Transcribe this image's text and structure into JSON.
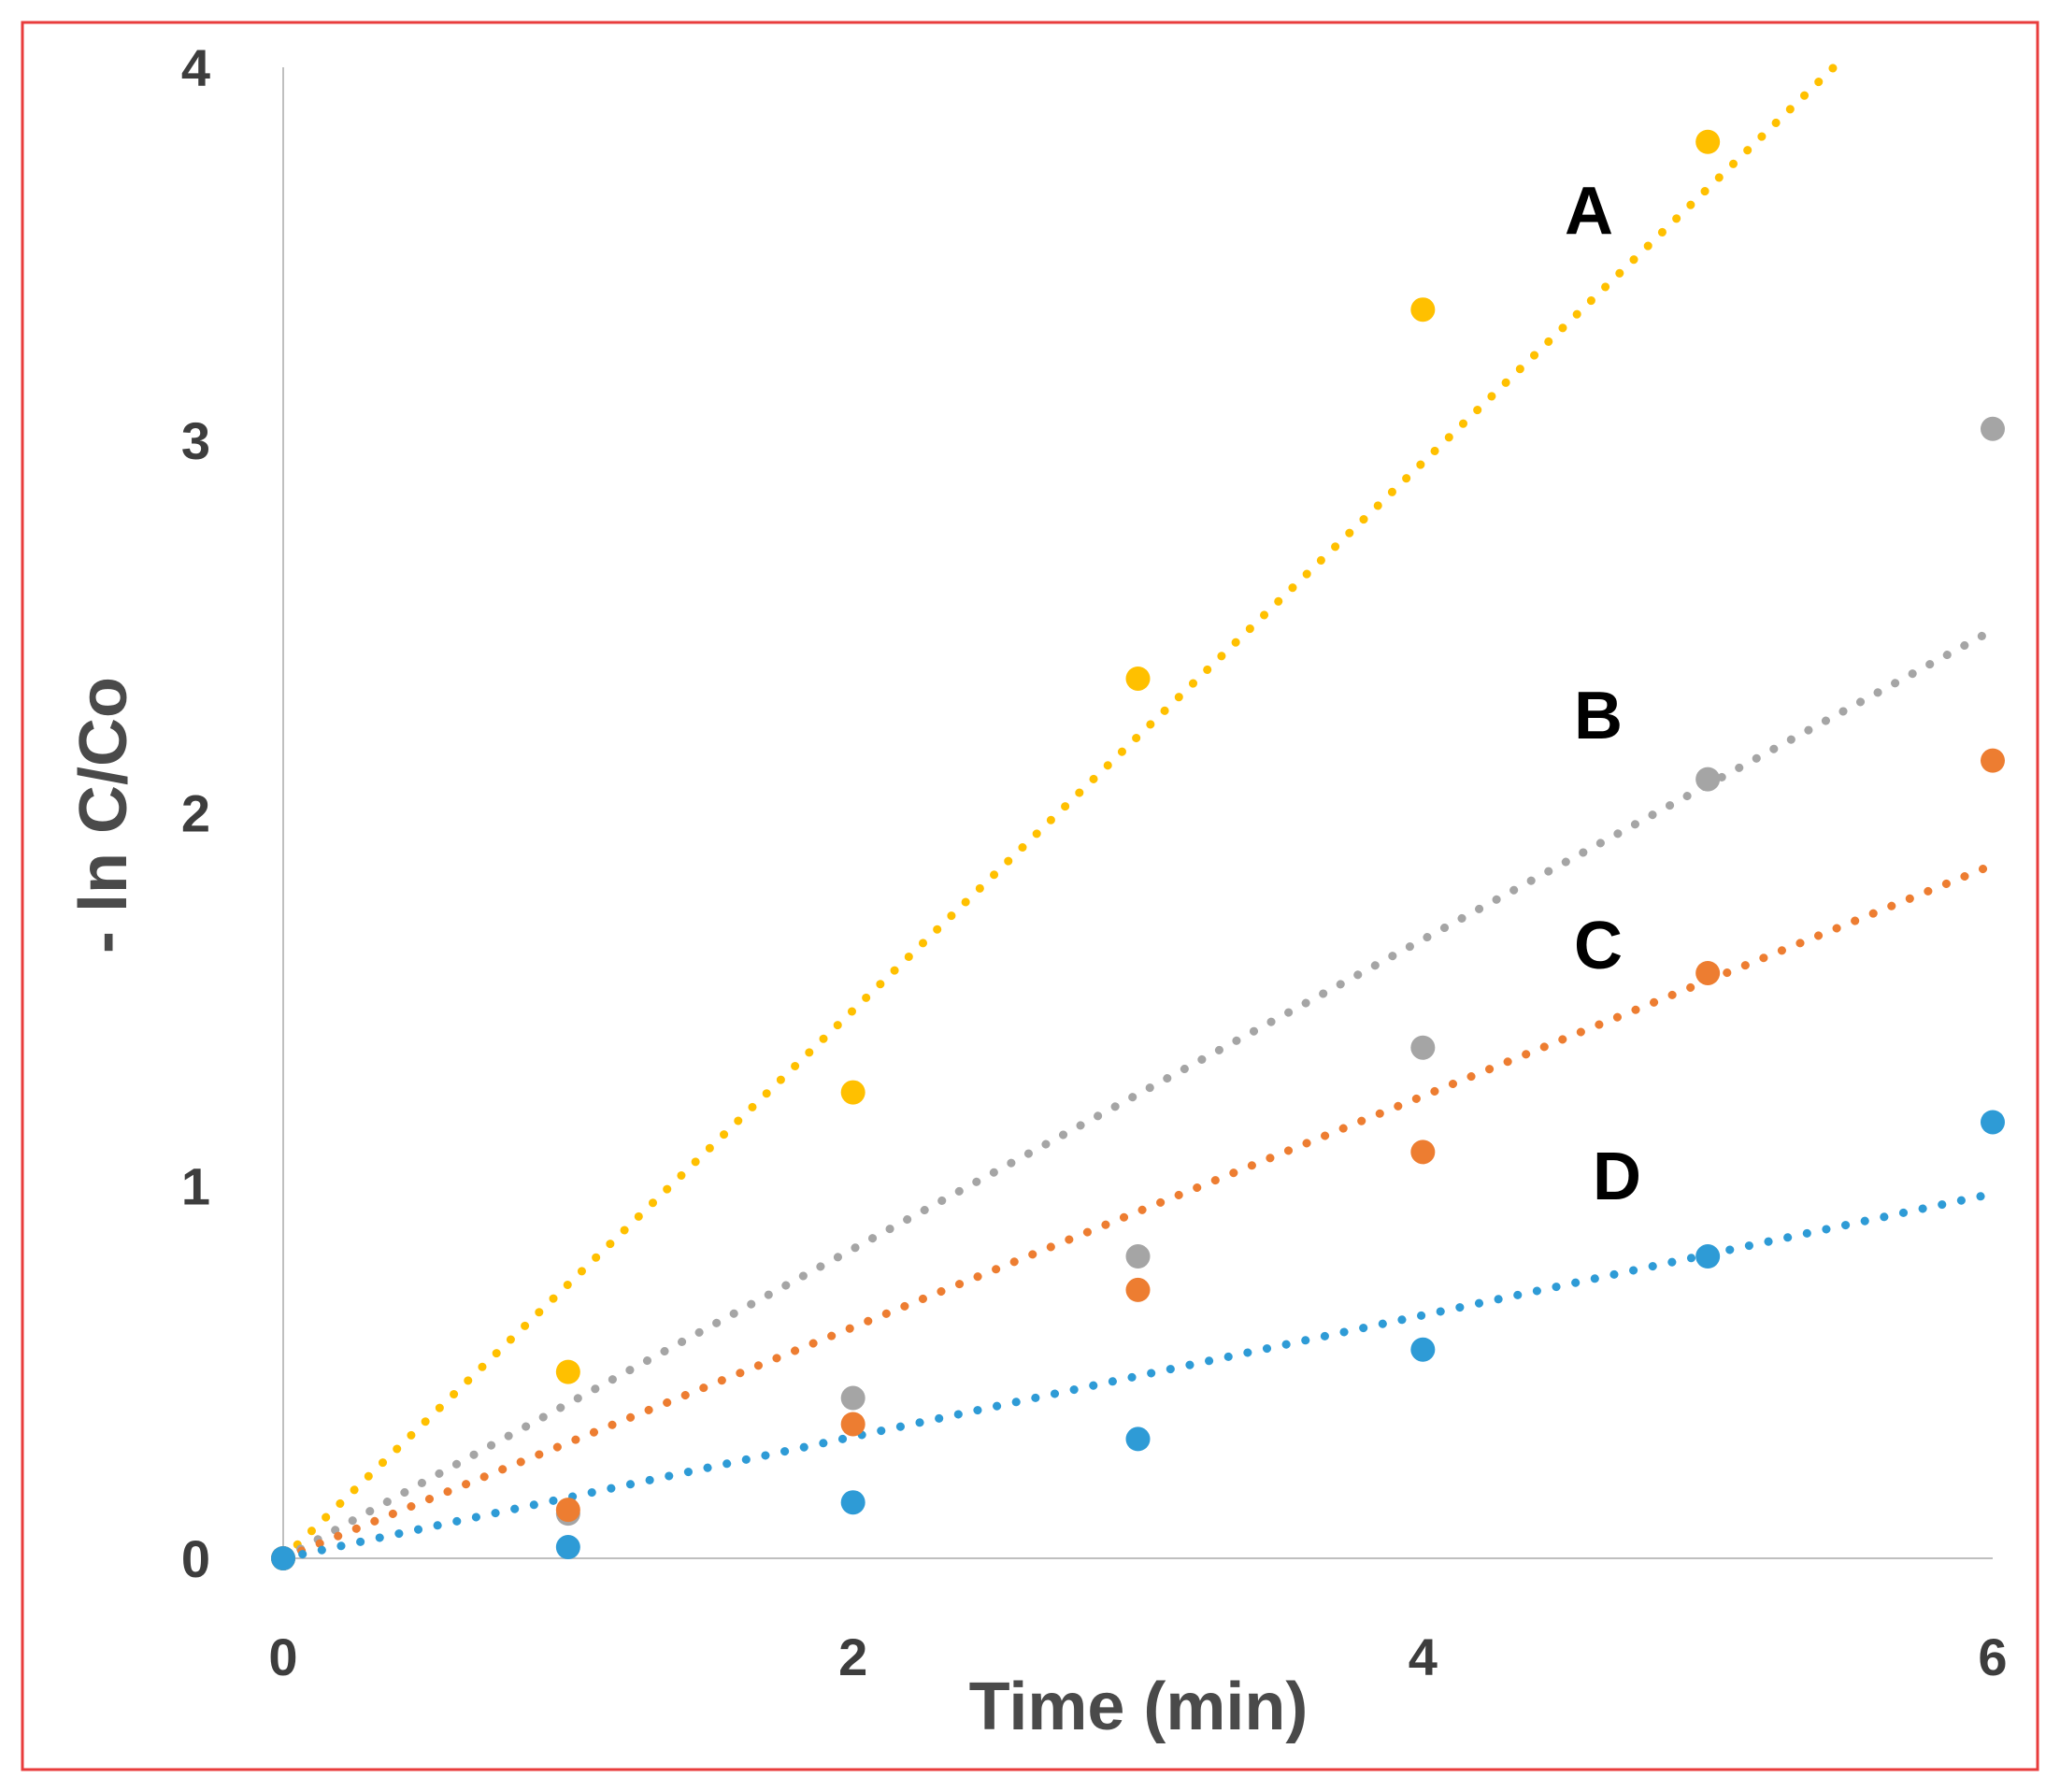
{
  "chart_data": {
    "type": "scatter",
    "title": "",
    "xlabel": "Time (min)",
    "ylabel": "- ln C/Co",
    "xlim": [
      0,
      6
    ],
    "ylim": [
      0,
      4
    ],
    "xticks": [
      "0",
      "2",
      "4",
      "6"
    ],
    "yticks": [
      "0",
      "1",
      "2",
      "3",
      "4"
    ],
    "grid": false,
    "frame_color": "#e83c3c",
    "axis_color": "#bfbfbf",
    "series": [
      {
        "name": "A",
        "color": "#ffc000",
        "x": [
          0,
          1,
          2,
          3,
          4,
          5,
          6
        ],
        "y": [
          0,
          0.5,
          1.25,
          2.36,
          3.35,
          3.8,
          null
        ],
        "trend": [
          0,
          0.735
        ]
      },
      {
        "name": "B",
        "color": "#a5a5a5",
        "x": [
          0,
          1,
          2,
          3,
          4,
          5,
          6
        ],
        "y": [
          0,
          0.12,
          0.43,
          0.81,
          1.37,
          2.09,
          3.03
        ],
        "trend": [
          0,
          0.415
        ]
      },
      {
        "name": "C",
        "color": "#ed7d31",
        "x": [
          0,
          1,
          2,
          3,
          4,
          5,
          6
        ],
        "y": [
          0,
          0.13,
          0.36,
          0.72,
          1.09,
          1.57,
          2.14
        ],
        "trend": [
          0,
          0.31
        ]
      },
      {
        "name": "D",
        "color": "#2e9bd6",
        "x": [
          0,
          1,
          2,
          3,
          4,
          5,
          6
        ],
        "y": [
          0,
          0.03,
          0.15,
          0.32,
          0.56,
          0.81,
          1.17
        ],
        "trend": [
          0,
          0.163
        ]
      }
    ],
    "series_labels": [
      "A",
      "B",
      "C",
      "D"
    ]
  }
}
